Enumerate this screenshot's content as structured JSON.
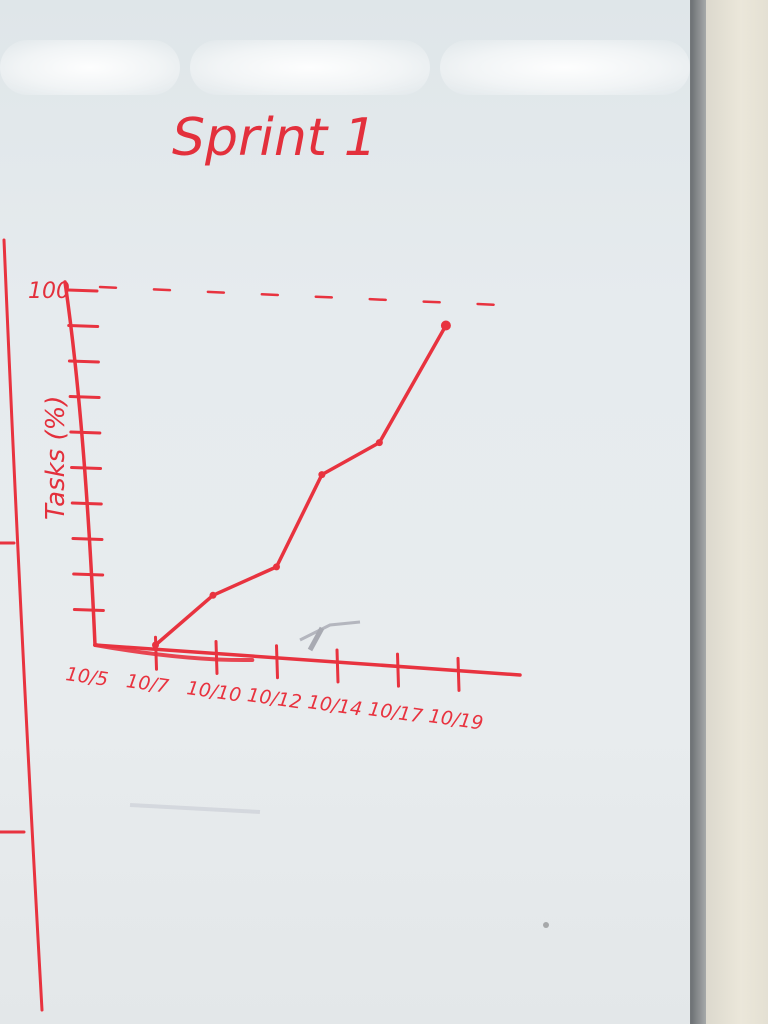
{
  "chart_data": {
    "type": "line",
    "title": "Sprint 1",
    "ylabel": "Tasks (%)",
    "xlabel": "",
    "categories": [
      "10/5",
      "10/7",
      "10/10",
      "10/12",
      "10/14",
      "10/17",
      "10/19"
    ],
    "ytick_labels": [
      "100"
    ],
    "ylim": [
      0,
      100
    ],
    "target_line": 100,
    "series": [
      {
        "x": [
          1.0,
          1.95,
          3.0,
          3.75,
          4.7,
          5.8
        ],
        "y": [
          0,
          14,
          22,
          48,
          57,
          90
        ]
      }
    ],
    "grid": false,
    "legend": "none",
    "colors": {
      "marker": "#e8333f"
    }
  }
}
